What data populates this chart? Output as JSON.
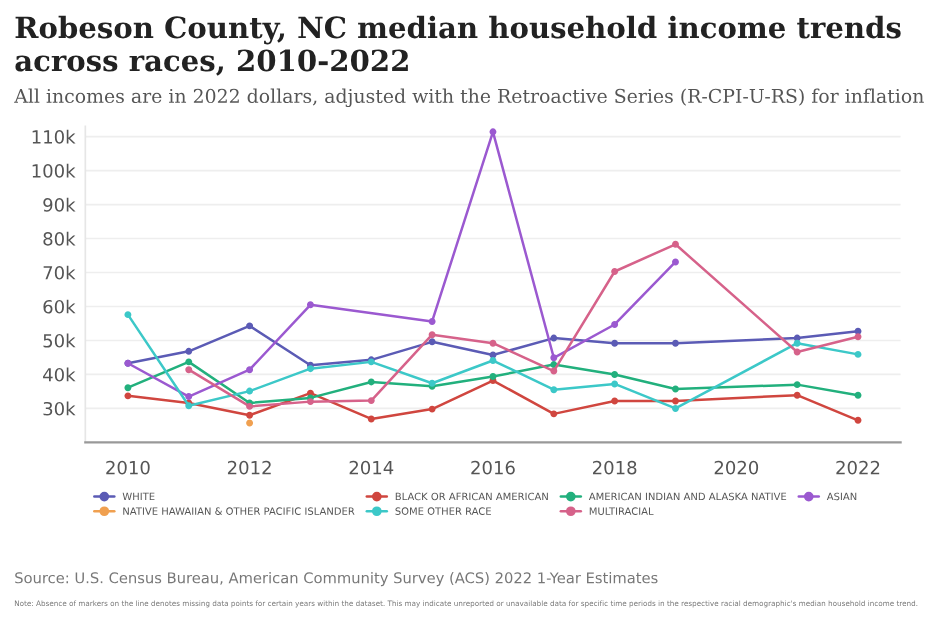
{
  "chart_data": {
    "type": "line",
    "title": "Robeson County, NC median household income trends across races, 2010-2022",
    "subtitle": "All incomes are in 2022 dollars, adjusted with the Retroactive Series (R-CPI-U-RS) for inflation",
    "series": [
      {
        "name": "WHITE",
        "color": "#5b5bb5",
        "x": [
          2010,
          2011,
          2012,
          2013,
          2014,
          2015,
          2016,
          2017,
          2018,
          2019,
          2021,
          2022
        ],
        "values": [
          43.3,
          46.8,
          54.3,
          42.7,
          44.3,
          49.6,
          45.7,
          50.7,
          49.2,
          49.2,
          50.7,
          52.7
        ]
      },
      {
        "name": "BLACK OR AFRICAN AMERICAN",
        "color": "#d0463f",
        "x": [
          2010,
          2011,
          2012,
          2013,
          2014,
          2015,
          2016,
          2017,
          2018,
          2019,
          2021,
          2022
        ],
        "values": [
          33.7,
          31.6,
          28,
          34.5,
          26.9,
          29.8,
          38.2,
          28.4,
          32.2,
          32.2,
          33.9,
          26.5
        ]
      },
      {
        "name": "AMERICAN INDIAN AND ALASKA NATIVE",
        "color": "#22b07d",
        "x": [
          2010,
          2011,
          2012,
          2013,
          2014,
          2015,
          2016,
          2017,
          2018,
          2019,
          2021,
          2022
        ],
        "values": [
          36.1,
          43.7,
          31.6,
          33.1,
          37.8,
          36.5,
          39.4,
          42.9,
          40,
          35.7,
          37,
          33.9
        ]
      },
      {
        "name": "ASIAN",
        "color": "#9b59d0",
        "x": [
          2010,
          2011,
          2012,
          2013,
          2015,
          2016,
          2017,
          2018,
          2019
        ],
        "values": [
          43.3,
          33.5,
          41.4,
          60.5,
          55.6,
          111.4,
          44.9,
          54.7,
          73.1
        ]
      },
      {
        "name": "NATIVE HAWAIIAN & OTHER PACIFIC ISLANDER",
        "color": "#f0a050",
        "x": [
          2012
        ],
        "values": [
          25.7
        ]
      },
      {
        "name": "SOME OTHER RACE",
        "color": "#3cc8c8",
        "x": [
          2010,
          2011,
          2012,
          2013,
          2014,
          2015,
          2016,
          2017,
          2018,
          2019,
          2021,
          2022
        ],
        "values": [
          57.6,
          30.8,
          35.1,
          41.7,
          43.7,
          37.4,
          44.1,
          35.5,
          37.2,
          30,
          49.2,
          45.9
        ]
      },
      {
        "name": "MULTIRACIAL",
        "color": "#d6628a",
        "x": [
          2011,
          2012,
          2013,
          2014,
          2015,
          2016,
          2017,
          2018,
          2019,
          2021,
          2022
        ],
        "values": [
          41.4,
          30.6,
          32,
          32.3,
          51.7,
          49.2,
          41,
          70.3,
          78.3,
          46.6,
          51.1
        ]
      }
    ],
    "xlim": [
      2009.3,
      2022.7
    ],
    "xticks": [
      2010,
      2012,
      2014,
      2016,
      2018,
      2020,
      2022
    ],
    "ylim": [
      20,
      113
    ],
    "yticks": [
      {
        "value": 30,
        "label": "30k"
      },
      {
        "value": 40,
        "label": "40k"
      },
      {
        "value": 50,
        "label": "50k"
      },
      {
        "value": 60,
        "label": "60k"
      },
      {
        "value": 70,
        "label": "70k"
      },
      {
        "value": 80,
        "label": "80k"
      },
      {
        "value": 90,
        "label": "90k"
      },
      {
        "value": 100,
        "label": "100k"
      },
      {
        "value": 110,
        "label": "110k"
      }
    ],
    "grid": "y",
    "legend": "bottom",
    "marker": "circle",
    "line_style": "solid",
    "annotations": [
      "Source: U.S. Census Bureau, American Community Survey (ACS) 2022 1-Year Estimates",
      "Note: Absence of markers on the line denotes missing data points for certain years within the dataset. This may indicate unreported or unavailable data for specific time periods in the respective racial demographic's median household income trend."
    ]
  }
}
